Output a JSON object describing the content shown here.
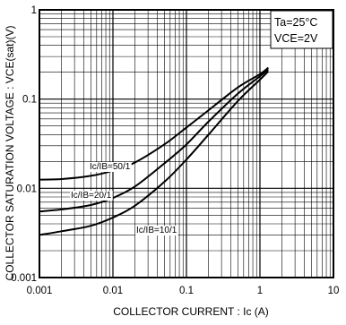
{
  "chart_data": {
    "type": "line",
    "x_scale": "log",
    "y_scale": "log",
    "xlim": [
      0.001,
      10
    ],
    "ylim": [
      0.001,
      1
    ],
    "x_ticks": [
      "0.001",
      "0.01",
      "0.1",
      "1",
      "10"
    ],
    "y_ticks": [
      "1",
      "0.1",
      "0.01",
      "0.001"
    ],
    "grid": true,
    "xlabel": "COLLECTOR  CURRENT : Ic (A)",
    "ylabel": "COLLECTOR  SATURATION  VOLTAGE : VCE(sat)(V)",
    "conditions": [
      "Ta=25°C",
      "VCE=2V"
    ],
    "series": [
      {
        "name": "Ic/IB=50/1",
        "x": [
          0.001,
          0.002,
          0.005,
          0.01,
          0.02,
          0.05,
          0.1,
          0.2,
          0.5,
          1.0,
          1.3
        ],
        "y": [
          0.0125,
          0.0127,
          0.0138,
          0.0158,
          0.0195,
          0.031,
          0.048,
          0.075,
          0.135,
          0.19,
          0.225
        ]
      },
      {
        "name": "Ic/IB=20/1",
        "x": [
          0.001,
          0.002,
          0.005,
          0.01,
          0.02,
          0.05,
          0.1,
          0.2,
          0.5,
          1.0,
          1.3
        ],
        "y": [
          0.0055,
          0.0058,
          0.0065,
          0.0078,
          0.0105,
          0.019,
          0.031,
          0.056,
          0.115,
          0.18,
          0.215
        ]
      },
      {
        "name": "Ic/IB=10/1",
        "x": [
          0.001,
          0.002,
          0.005,
          0.01,
          0.02,
          0.05,
          0.1,
          0.2,
          0.5,
          1.0,
          1.3
        ],
        "y": [
          0.003,
          0.0033,
          0.0038,
          0.0047,
          0.0064,
          0.0118,
          0.021,
          0.04,
          0.095,
          0.165,
          0.205
        ]
      }
    ]
  }
}
